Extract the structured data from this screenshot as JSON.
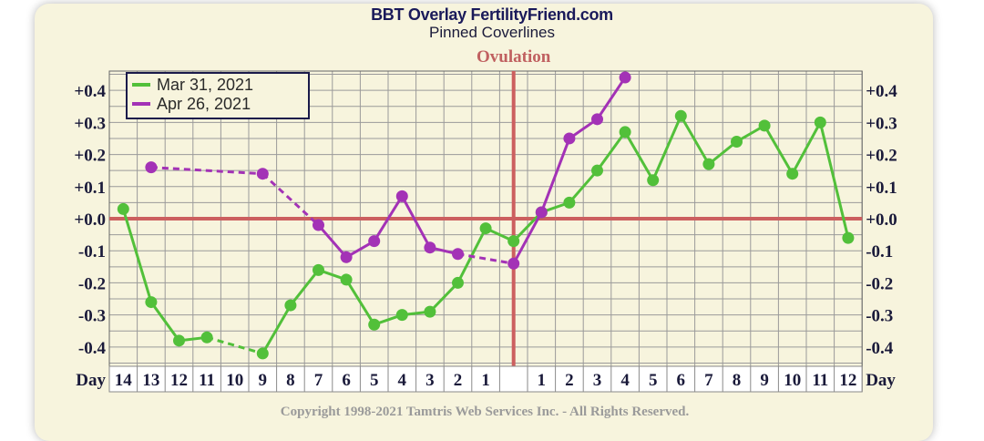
{
  "header": {
    "title": "BBT Overlay FertilityFriend.com",
    "subtitle": "Pinned Coverlines"
  },
  "footer": {
    "copyright": "Copyright 1998-2021 Tamtris Web Services Inc. - All Rights Reserved."
  },
  "chart_data": {
    "type": "line",
    "x_axis": {
      "label_left": "Day",
      "label_right": "Day",
      "ticks": [
        "14",
        "13",
        "12",
        "11",
        "10",
        "9",
        "8",
        "7",
        "6",
        "5",
        "4",
        "3",
        "2",
        "1",
        "",
        "1",
        "2",
        "3",
        "4",
        "5",
        "6",
        "7",
        "8",
        "9",
        "10",
        "11",
        "12"
      ]
    },
    "y_axis": {
      "ticks": [
        "+0.4",
        "+0.3",
        "+0.2",
        "+0.1",
        "+0.0",
        "-0.1",
        "-0.2",
        "-0.3",
        "-0.4"
      ],
      "tick_values": [
        0.4,
        0.3,
        0.2,
        0.1,
        0.0,
        -0.1,
        -0.2,
        -0.3,
        -0.4
      ],
      "range": [
        -0.46,
        0.46
      ]
    },
    "grid": true,
    "coverline_value": 0.0,
    "ovulation": {
      "label": "Ovulation",
      "column": 14
    },
    "legend": {
      "placement": "top-left",
      "entries": [
        {
          "name": "Mar 31, 2021",
          "color": "#52c03a"
        },
        {
          "name": "Apr 26, 2021",
          "color": "#a332b6"
        }
      ]
    },
    "series": [
      {
        "name": "Mar 31, 2021",
        "color": "#52c03a",
        "points": [
          [
            0,
            0.03
          ],
          [
            1,
            -0.26
          ],
          [
            2,
            -0.38
          ],
          [
            3,
            -0.37
          ],
          [
            5,
            -0.42
          ],
          [
            6,
            -0.27
          ],
          [
            7,
            -0.16
          ],
          [
            8,
            -0.19
          ],
          [
            9,
            -0.33
          ],
          [
            10,
            -0.3
          ],
          [
            11,
            -0.29
          ],
          [
            12,
            -0.2
          ],
          [
            13,
            -0.03
          ],
          [
            14,
            -0.07
          ],
          [
            15,
            0.02
          ],
          [
            16,
            0.05
          ],
          [
            17,
            0.15
          ],
          [
            18,
            0.27
          ],
          [
            19,
            0.12
          ],
          [
            20,
            0.32
          ],
          [
            21,
            0.17
          ],
          [
            22,
            0.24
          ],
          [
            23,
            0.29
          ],
          [
            24,
            0.14
          ],
          [
            25,
            0.3
          ],
          [
            26,
            -0.06
          ]
        ],
        "dashed_gaps": [
          [
            3,
            5
          ]
        ]
      },
      {
        "name": "Apr 26, 2021",
        "color": "#a332b6",
        "points": [
          [
            1,
            0.16
          ],
          [
            5,
            0.14
          ],
          [
            7,
            -0.02
          ],
          [
            8,
            -0.12
          ],
          [
            9,
            -0.07
          ],
          [
            10,
            0.07
          ],
          [
            11,
            -0.09
          ],
          [
            12,
            -0.11
          ],
          [
            14,
            -0.14
          ],
          [
            15,
            0.02
          ],
          [
            16,
            0.25
          ],
          [
            17,
            0.31
          ],
          [
            18,
            0.44
          ]
        ],
        "dashed_gaps": [
          [
            1,
            5
          ],
          [
            5,
            7
          ],
          [
            12,
            14
          ]
        ]
      }
    ]
  }
}
